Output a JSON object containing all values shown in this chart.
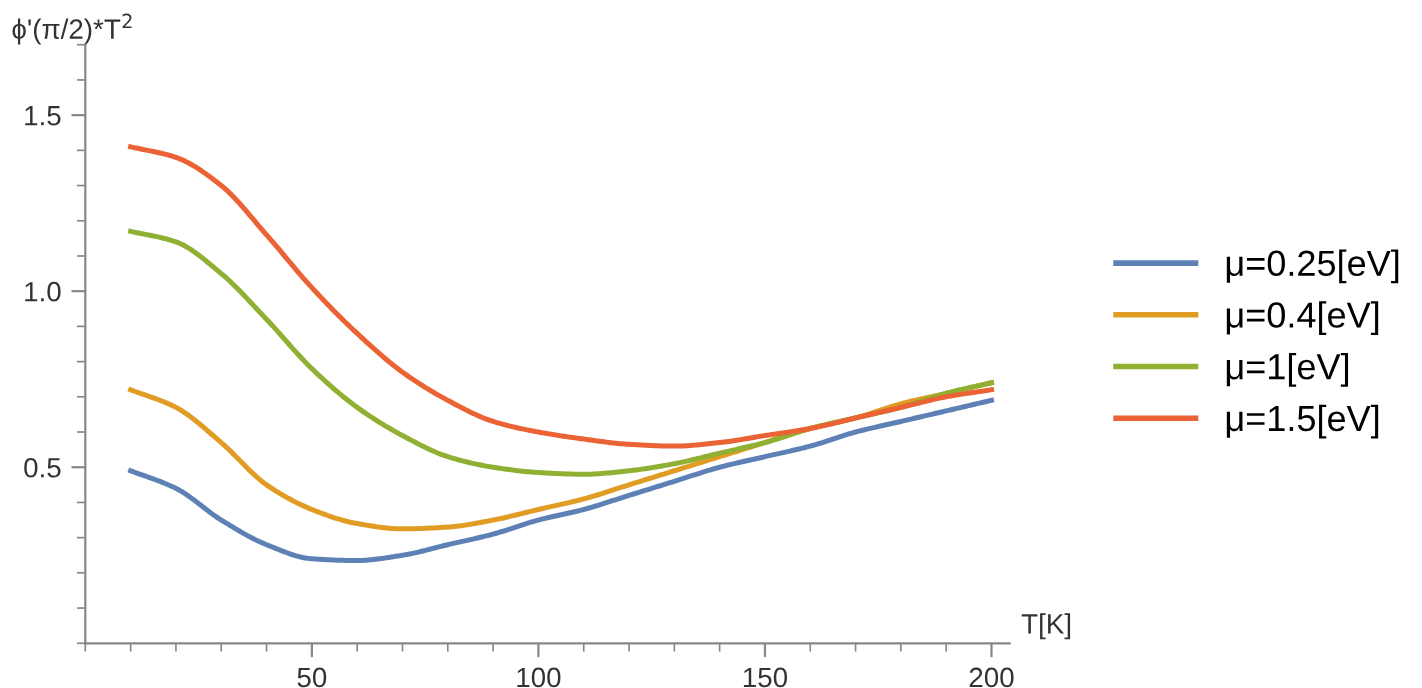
{
  "chart_data": {
    "type": "line",
    "xlabel": "T[K]",
    "ylabel": "ϕ'(π/2)*T$^{2}$",
    "x": [
      10,
      20,
      30,
      40,
      50,
      60,
      70,
      80,
      90,
      100,
      110,
      120,
      130,
      140,
      150,
      160,
      170,
      180,
      190,
      200
    ],
    "series": [
      {
        "name": "μ=0.25[eV]",
        "color": "#5e81b5",
        "values": [
          0.49,
          0.44,
          0.35,
          0.28,
          0.24,
          0.235,
          0.25,
          0.28,
          0.31,
          0.35,
          0.38,
          0.42,
          0.46,
          0.5,
          0.53,
          0.56,
          0.6,
          0.63,
          0.66,
          0.69
        ]
      },
      {
        "name": "μ=0.4[eV]",
        "color": "#e19c24",
        "values": [
          0.72,
          0.67,
          0.57,
          0.45,
          0.38,
          0.34,
          0.325,
          0.33,
          0.35,
          0.38,
          0.41,
          0.45,
          0.49,
          0.53,
          0.57,
          0.61,
          0.64,
          0.68,
          0.71,
          0.74
        ]
      },
      {
        "name": "μ=1[eV]",
        "color": "#8fb032",
        "values": [
          1.17,
          1.14,
          1.05,
          0.92,
          0.78,
          0.67,
          0.59,
          0.53,
          0.5,
          0.485,
          0.48,
          0.49,
          0.51,
          0.54,
          0.57,
          0.61,
          0.64,
          0.67,
          0.71,
          0.74
        ]
      },
      {
        "name": "μ=1.5[eV]",
        "color": "#eb6235",
        "values": [
          1.41,
          1.38,
          1.3,
          1.16,
          1.01,
          0.88,
          0.77,
          0.69,
          0.63,
          0.6,
          0.58,
          0.565,
          0.56,
          0.57,
          0.59,
          0.61,
          0.64,
          0.67,
          0.7,
          0.72
        ]
      }
    ],
    "xlim": [
      0,
      204
    ],
    "ylim": [
      0,
      1.7
    ],
    "xticks": [
      50,
      100,
      150,
      200
    ],
    "yticks": [
      0.5,
      {
        "value": 1.0,
        "label": "1.0"
      },
      1.5
    ],
    "legend": "right",
    "grid": false,
    "marker": "none",
    "line_style": "solid"
  }
}
